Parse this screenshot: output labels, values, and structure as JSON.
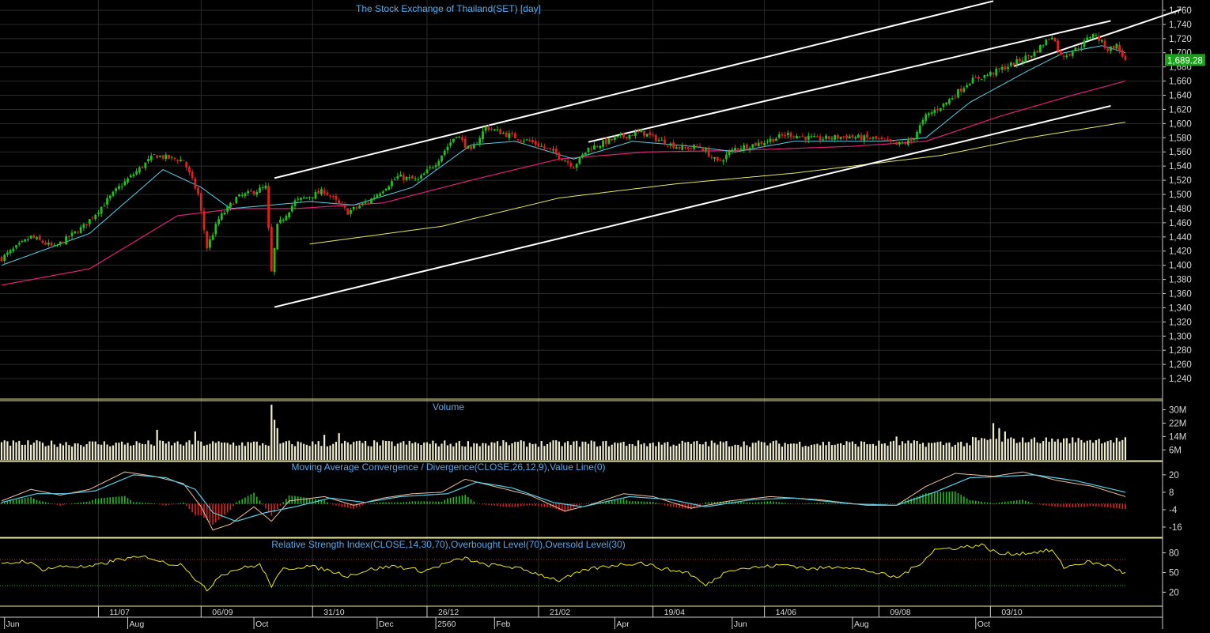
{
  "colors": {
    "background": "#000000",
    "grid": "#2b2b2b",
    "panel_border": "#e8e8a0",
    "title": "#5aa7e8",
    "candle_up": "#20c020",
    "candle_down": "#e02020",
    "ma_fast": "#58d0e8",
    "ma_mid": "#e0207a",
    "ma_slow": "#e8e860",
    "trendline": "#ffffff",
    "volume": "#f0ecd0",
    "macd": "#f0c0a0",
    "macd_signal": "#58d0e8",
    "rsi": "#e8e820",
    "price_tag_bg": "#1aa01a",
    "price_tag_text": "#ffffff"
  },
  "chart_data": [
    {
      "type": "candlestick",
      "title": "The Stock Exchange of Thailand(SET) [day]",
      "ylim": [
        1220,
        1770
      ],
      "y_ticks": [
        "1,760",
        "1,740",
        "1,720",
        "1,700",
        "1,680",
        "1,660",
        "1,640",
        "1,620",
        "1,600",
        "1,580",
        "1,560",
        "1,540",
        "1,520",
        "1,500",
        "1,480",
        "1,460",
        "1,440",
        "1,420",
        "1,400",
        "1,380",
        "1,360",
        "1,340",
        "1,320",
        "1,300",
        "1,280",
        "1,260",
        "1,240"
      ],
      "y_tick_values": [
        1760,
        1740,
        1720,
        1700,
        1680,
        1660,
        1640,
        1620,
        1600,
        1580,
        1560,
        1540,
        1520,
        1500,
        1480,
        1460,
        1440,
        1420,
        1400,
        1380,
        1360,
        1340,
        1320,
        1300,
        1280,
        1260,
        1240
      ],
      "last_price_label": "1,689.28",
      "last_price": 1689.28,
      "grid": true,
      "close_keypoints": [
        {
          "day": 0,
          "v": 1410
        },
        {
          "day": 10,
          "v": 1440
        },
        {
          "day": 18,
          "v": 1425
        },
        {
          "day": 28,
          "v": 1455
        },
        {
          "day": 40,
          "v": 1510
        },
        {
          "day": 52,
          "v": 1555
        },
        {
          "day": 62,
          "v": 1548
        },
        {
          "day": 67,
          "v": 1500
        },
        {
          "day": 70,
          "v": 1425
        },
        {
          "day": 74,
          "v": 1465
        },
        {
          "day": 80,
          "v": 1495
        },
        {
          "day": 90,
          "v": 1510
        },
        {
          "day": 92,
          "v": 1390
        },
        {
          "day": 94,
          "v": 1455
        },
        {
          "day": 100,
          "v": 1490
        },
        {
          "day": 110,
          "v": 1505
        },
        {
          "day": 118,
          "v": 1475
        },
        {
          "day": 125,
          "v": 1490
        },
        {
          "day": 135,
          "v": 1525
        },
        {
          "day": 142,
          "v": 1520
        },
        {
          "day": 148,
          "v": 1545
        },
        {
          "day": 155,
          "v": 1585
        },
        {
          "day": 160,
          "v": 1560
        },
        {
          "day": 165,
          "v": 1595
        },
        {
          "day": 172,
          "v": 1585
        },
        {
          "day": 180,
          "v": 1575
        },
        {
          "day": 188,
          "v": 1560
        },
        {
          "day": 195,
          "v": 1540
        },
        {
          "day": 200,
          "v": 1565
        },
        {
          "day": 210,
          "v": 1580
        },
        {
          "day": 218,
          "v": 1588
        },
        {
          "day": 225,
          "v": 1575
        },
        {
          "day": 232,
          "v": 1565
        },
        {
          "day": 238,
          "v": 1568
        },
        {
          "day": 244,
          "v": 1545
        },
        {
          "day": 250,
          "v": 1565
        },
        {
          "day": 258,
          "v": 1572
        },
        {
          "day": 268,
          "v": 1585
        },
        {
          "day": 278,
          "v": 1578
        },
        {
          "day": 288,
          "v": 1582
        },
        {
          "day": 298,
          "v": 1578
        },
        {
          "day": 305,
          "v": 1570
        },
        {
          "day": 310,
          "v": 1575
        },
        {
          "day": 315,
          "v": 1610
        },
        {
          "day": 322,
          "v": 1630
        },
        {
          "day": 330,
          "v": 1660
        },
        {
          "day": 338,
          "v": 1672
        },
        {
          "day": 345,
          "v": 1685
        },
        {
          "day": 352,
          "v": 1700
        },
        {
          "day": 358,
          "v": 1725
        },
        {
          "day": 361,
          "v": 1695
        },
        {
          "day": 364,
          "v": 1700
        },
        {
          "day": 368,
          "v": 1710
        },
        {
          "day": 372,
          "v": 1728
        },
        {
          "day": 377,
          "v": 1705
        },
        {
          "day": 380,
          "v": 1710
        },
        {
          "day": 383,
          "v": 1689.28
        }
      ],
      "ma_fast_keypoints": [
        {
          "day": 0,
          "v": 1400
        },
        {
          "day": 30,
          "v": 1445
        },
        {
          "day": 55,
          "v": 1535
        },
        {
          "day": 68,
          "v": 1510
        },
        {
          "day": 78,
          "v": 1480
        },
        {
          "day": 92,
          "v": 1485
        },
        {
          "day": 105,
          "v": 1490
        },
        {
          "day": 120,
          "v": 1485
        },
        {
          "day": 140,
          "v": 1510
        },
        {
          "day": 160,
          "v": 1570
        },
        {
          "day": 175,
          "v": 1575
        },
        {
          "day": 195,
          "v": 1550
        },
        {
          "day": 215,
          "v": 1575
        },
        {
          "day": 235,
          "v": 1568
        },
        {
          "day": 250,
          "v": 1560
        },
        {
          "day": 270,
          "v": 1575
        },
        {
          "day": 300,
          "v": 1575
        },
        {
          "day": 315,
          "v": 1580
        },
        {
          "day": 330,
          "v": 1630
        },
        {
          "day": 350,
          "v": 1675
        },
        {
          "day": 362,
          "v": 1700
        },
        {
          "day": 375,
          "v": 1710
        },
        {
          "day": 383,
          "v": 1700
        }
      ],
      "ma_mid_keypoints": [
        {
          "day": 0,
          "v": 1372
        },
        {
          "day": 30,
          "v": 1395
        },
        {
          "day": 60,
          "v": 1470
        },
        {
          "day": 80,
          "v": 1480
        },
        {
          "day": 100,
          "v": 1480
        },
        {
          "day": 130,
          "v": 1488
        },
        {
          "day": 160,
          "v": 1520
        },
        {
          "day": 190,
          "v": 1550
        },
        {
          "day": 220,
          "v": 1560
        },
        {
          "day": 250,
          "v": 1562
        },
        {
          "day": 290,
          "v": 1568
        },
        {
          "day": 315,
          "v": 1575
        },
        {
          "day": 340,
          "v": 1610
        },
        {
          "day": 365,
          "v": 1640
        },
        {
          "day": 383,
          "v": 1660
        }
      ],
      "ma_slow_keypoints": [
        {
          "day": 105,
          "v": 1430
        },
        {
          "day": 150,
          "v": 1455
        },
        {
          "day": 190,
          "v": 1495
        },
        {
          "day": 230,
          "v": 1515
        },
        {
          "day": 270,
          "v": 1530
        },
        {
          "day": 300,
          "v": 1545
        },
        {
          "day": 320,
          "v": 1555
        },
        {
          "day": 350,
          "v": 1580
        },
        {
          "day": 383,
          "v": 1602
        }
      ],
      "trendlines": [
        {
          "from": {
            "day": 93,
            "v": 1523
          },
          "to": {
            "day": 338,
            "v": 1773
          }
        },
        {
          "from": {
            "day": 200,
            "v": 1574
          },
          "to": {
            "day": 378,
            "v": 1745
          }
        },
        {
          "from": {
            "day": 93,
            "v": 1341
          },
          "to": {
            "day": 378,
            "v": 1625
          }
        },
        {
          "from": {
            "day": 345,
            "v": 1681
          },
          "to": {
            "day": 402,
            "v": 1761
          }
        }
      ]
    },
    {
      "type": "bar",
      "title": "Volume",
      "y_ticks": [
        "30M",
        "22M",
        "14M",
        "6M"
      ],
      "y_tick_values": [
        30,
        22,
        14,
        6
      ],
      "unit": "M",
      "ylim": [
        0,
        34
      ],
      "base_level": 9,
      "spikes": [
        {
          "day": 92,
          "v": 33
        },
        {
          "day": 93,
          "v": 24
        },
        {
          "day": 94,
          "v": 19
        },
        {
          "day": 53,
          "v": 18
        },
        {
          "day": 66,
          "v": 17
        },
        {
          "day": 110,
          "v": 15
        },
        {
          "day": 115,
          "v": 16
        },
        {
          "day": 305,
          "v": 14
        },
        {
          "day": 338,
          "v": 22
        },
        {
          "day": 340,
          "v": 19
        },
        {
          "day": 342,
          "v": 17
        }
      ]
    },
    {
      "type": "line",
      "title": "Moving Average Convergence / Divergence(CLOSE,26,12,9),Value Line(0)",
      "y_ticks": [
        "20",
        "8",
        "-4",
        "-16"
      ],
      "y_tick_values": [
        20,
        8,
        -4,
        -16
      ],
      "ylim": [
        -22,
        27
      ],
      "macd_keypoints": [
        {
          "day": 0,
          "v": 2
        },
        {
          "day": 10,
          "v": 10
        },
        {
          "day": 20,
          "v": 6
        },
        {
          "day": 30,
          "v": 10
        },
        {
          "day": 42,
          "v": 22
        },
        {
          "day": 52,
          "v": 19
        },
        {
          "day": 62,
          "v": 14
        },
        {
          "day": 68,
          "v": -2
        },
        {
          "day": 72,
          "v": -18
        },
        {
          "day": 78,
          "v": -14
        },
        {
          "day": 86,
          "v": -2
        },
        {
          "day": 92,
          "v": -12
        },
        {
          "day": 98,
          "v": 2
        },
        {
          "day": 110,
          "v": 5
        },
        {
          "day": 120,
          "v": -1
        },
        {
          "day": 130,
          "v": 4
        },
        {
          "day": 140,
          "v": 7
        },
        {
          "day": 150,
          "v": 8
        },
        {
          "day": 158,
          "v": 17
        },
        {
          "day": 168,
          "v": 12
        },
        {
          "day": 180,
          "v": 6
        },
        {
          "day": 192,
          "v": -5
        },
        {
          "day": 200,
          "v": -1
        },
        {
          "day": 212,
          "v": 7
        },
        {
          "day": 222,
          "v": 5
        },
        {
          "day": 235,
          "v": -3
        },
        {
          "day": 248,
          "v": 2
        },
        {
          "day": 262,
          "v": 5
        },
        {
          "day": 278,
          "v": 3
        },
        {
          "day": 295,
          "v": -1
        },
        {
          "day": 305,
          "v": -1
        },
        {
          "day": 315,
          "v": 12
        },
        {
          "day": 325,
          "v": 21
        },
        {
          "day": 338,
          "v": 19
        },
        {
          "day": 348,
          "v": 22
        },
        {
          "day": 360,
          "v": 16
        },
        {
          "day": 372,
          "v": 12
        },
        {
          "day": 383,
          "v": 5
        }
      ],
      "signal_keypoints": [
        {
          "day": 0,
          "v": 1
        },
        {
          "day": 12,
          "v": 7
        },
        {
          "day": 22,
          "v": 7
        },
        {
          "day": 32,
          "v": 9
        },
        {
          "day": 45,
          "v": 20
        },
        {
          "day": 56,
          "v": 18
        },
        {
          "day": 66,
          "v": 10
        },
        {
          "day": 72,
          "v": -6
        },
        {
          "day": 80,
          "v": -12
        },
        {
          "day": 90,
          "v": -6
        },
        {
          "day": 100,
          "v": -2
        },
        {
          "day": 112,
          "v": 4
        },
        {
          "day": 124,
          "v": 1
        },
        {
          "day": 136,
          "v": 5
        },
        {
          "day": 152,
          "v": 7
        },
        {
          "day": 162,
          "v": 15
        },
        {
          "day": 174,
          "v": 11
        },
        {
          "day": 188,
          "v": 1
        },
        {
          "day": 198,
          "v": -2
        },
        {
          "day": 214,
          "v": 5
        },
        {
          "day": 228,
          "v": 3
        },
        {
          "day": 240,
          "v": -2
        },
        {
          "day": 256,
          "v": 3
        },
        {
          "day": 270,
          "v": 4
        },
        {
          "day": 290,
          "v": 0
        },
        {
          "day": 305,
          "v": -1
        },
        {
          "day": 318,
          "v": 8
        },
        {
          "day": 330,
          "v": 18
        },
        {
          "day": 342,
          "v": 19
        },
        {
          "day": 352,
          "v": 20
        },
        {
          "day": 366,
          "v": 16
        },
        {
          "day": 383,
          "v": 8
        }
      ]
    },
    {
      "type": "line",
      "title": "Relative Strength Index(CLOSE,14,30,70),Overbought Level(70),Oversold Level(30)",
      "y_ticks": [
        "80",
        "50",
        "20"
      ],
      "y_tick_values": [
        80,
        50,
        20
      ],
      "ylim": [
        0,
        100
      ],
      "overbought": 70,
      "oversold": 30,
      "rsi_keypoints": [
        {
          "day": 0,
          "v": 62
        },
        {
          "day": 8,
          "v": 68
        },
        {
          "day": 14,
          "v": 55
        },
        {
          "day": 22,
          "v": 60
        },
        {
          "day": 30,
          "v": 58
        },
        {
          "day": 40,
          "v": 70
        },
        {
          "day": 50,
          "v": 74
        },
        {
          "day": 56,
          "v": 64
        },
        {
          "day": 62,
          "v": 62
        },
        {
          "day": 66,
          "v": 40
        },
        {
          "day": 70,
          "v": 22
        },
        {
          "day": 74,
          "v": 45
        },
        {
          "day": 80,
          "v": 55
        },
        {
          "day": 88,
          "v": 62
        },
        {
          "day": 92,
          "v": 30
        },
        {
          "day": 96,
          "v": 55
        },
        {
          "day": 104,
          "v": 60
        },
        {
          "day": 110,
          "v": 55
        },
        {
          "day": 118,
          "v": 45
        },
        {
          "day": 126,
          "v": 55
        },
        {
          "day": 134,
          "v": 60
        },
        {
          "day": 144,
          "v": 52
        },
        {
          "day": 152,
          "v": 65
        },
        {
          "day": 158,
          "v": 72
        },
        {
          "day": 164,
          "v": 62
        },
        {
          "day": 172,
          "v": 60
        },
        {
          "day": 180,
          "v": 52
        },
        {
          "day": 190,
          "v": 38
        },
        {
          "day": 200,
          "v": 55
        },
        {
          "day": 210,
          "v": 62
        },
        {
          "day": 218,
          "v": 65
        },
        {
          "day": 226,
          "v": 55
        },
        {
          "day": 234,
          "v": 50
        },
        {
          "day": 240,
          "v": 30
        },
        {
          "day": 248,
          "v": 55
        },
        {
          "day": 258,
          "v": 58
        },
        {
          "day": 268,
          "v": 62
        },
        {
          "day": 276,
          "v": 55
        },
        {
          "day": 286,
          "v": 60
        },
        {
          "day": 296,
          "v": 52
        },
        {
          "day": 305,
          "v": 42
        },
        {
          "day": 312,
          "v": 60
        },
        {
          "day": 318,
          "v": 85
        },
        {
          "day": 326,
          "v": 88
        },
        {
          "day": 334,
          "v": 92
        },
        {
          "day": 340,
          "v": 78
        },
        {
          "day": 350,
          "v": 80
        },
        {
          "day": 358,
          "v": 84
        },
        {
          "day": 362,
          "v": 58
        },
        {
          "day": 370,
          "v": 66
        },
        {
          "day": 378,
          "v": 60
        },
        {
          "day": 383,
          "v": 48
        }
      ]
    }
  ],
  "x_axis": {
    "total_days": 384,
    "upper_labels": [
      {
        "day": 33,
        "text": "11/07"
      },
      {
        "day": 68,
        "text": "06/09"
      },
      {
        "day": 106,
        "text": "31/10"
      },
      {
        "day": 145,
        "text": "26/12"
      },
      {
        "day": 183,
        "text": "21/02"
      },
      {
        "day": 222,
        "text": "19/04"
      },
      {
        "day": 260,
        "text": "14/06"
      },
      {
        "day": 299,
        "text": "09/08"
      },
      {
        "day": 337,
        "text": "03/10"
      }
    ],
    "lower_labels": [
      {
        "day": 1,
        "text": "Jun"
      },
      {
        "day": 43,
        "text": "Aug"
      },
      {
        "day": 86,
        "text": "Oct"
      },
      {
        "day": 128,
        "text": "Dec"
      },
      {
        "day": 148,
        "text": "2560"
      },
      {
        "day": 168,
        "text": "Feb"
      },
      {
        "day": 209,
        "text": "Apr"
      },
      {
        "day": 249,
        "text": "Jun"
      },
      {
        "day": 290,
        "text": "Aug"
      },
      {
        "day": 332,
        "text": "Oct"
      }
    ]
  }
}
